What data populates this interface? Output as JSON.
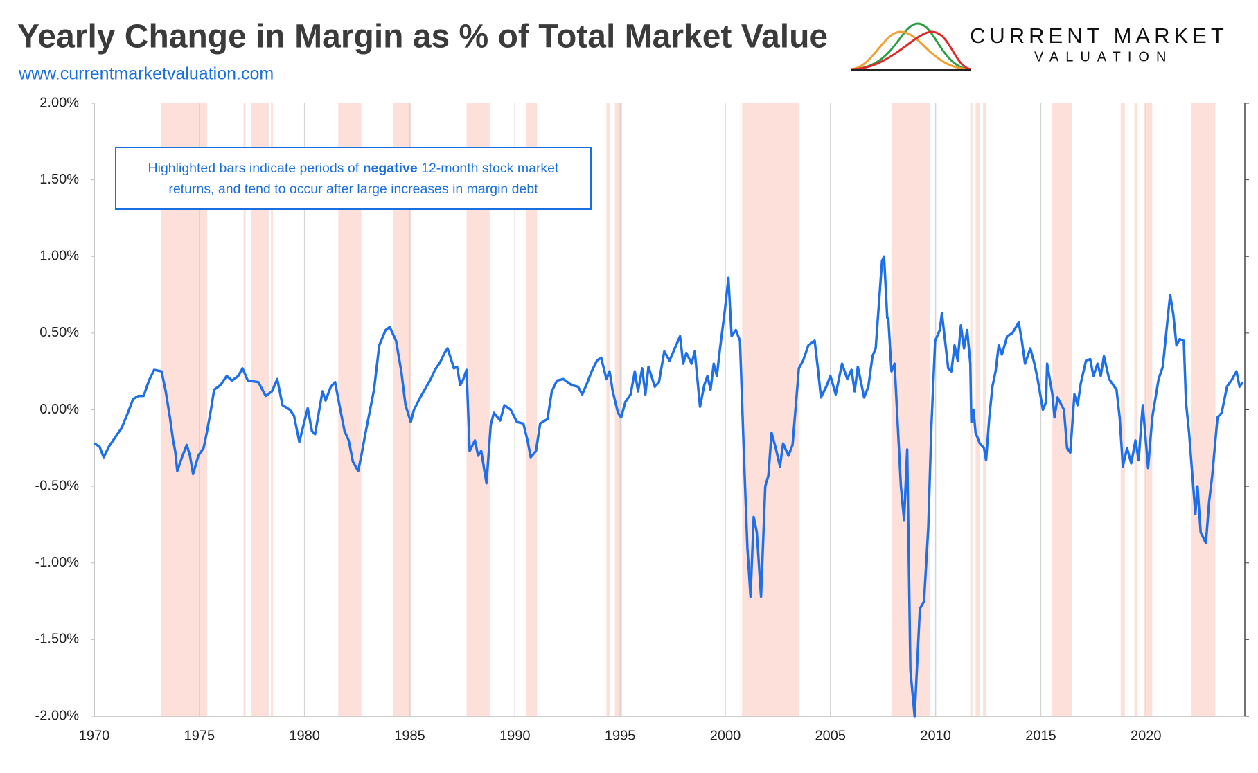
{
  "chart_data": {
    "type": "line",
    "title": "Yearly Change in Margin as % of Total Market Value",
    "subtitle": "www.currentmarketvaluation.com",
    "logo": {
      "line1": "CURRENT MARKET",
      "line2": "VALUATION"
    },
    "annotation": {
      "before": "Highlighted bars indicate periods of ",
      "bold": "negative",
      "after": " 12-month stock market returns, and tend to occur after large increases in margin debt"
    },
    "x": [
      1970.0,
      1970.25,
      1970.45,
      1970.7,
      1971.0,
      1971.3,
      1971.6,
      1971.85,
      1972.1,
      1972.35,
      1972.6,
      1972.85,
      1973.2,
      1973.4,
      1973.6,
      1973.75,
      1973.85,
      1973.95,
      1974.2,
      1974.4,
      1974.55,
      1974.7,
      1974.95,
      1975.2,
      1975.35,
      1975.55,
      1975.7,
      1976.0,
      1976.3,
      1976.55,
      1976.85,
      1977.05,
      1977.3,
      1977.8,
      1978.15,
      1978.45,
      1978.7,
      1978.95,
      1979.3,
      1979.5,
      1979.75,
      1980.15,
      1980.35,
      1980.5,
      1980.85,
      1981.0,
      1981.25,
      1981.45,
      1981.7,
      1981.9,
      1982.1,
      1982.3,
      1982.55,
      1982.7,
      1982.9,
      1983.3,
      1983.55,
      1983.85,
      1984.05,
      1984.35,
      1984.6,
      1984.8,
      1985.05,
      1985.2,
      1985.5,
      1985.75,
      1986.0,
      1986.2,
      1986.45,
      1986.65,
      1986.8,
      1987.1,
      1987.25,
      1987.4,
      1987.55,
      1987.7,
      1987.85,
      1988.1,
      1988.25,
      1988.4,
      1988.55,
      1988.65,
      1988.85,
      1989.0,
      1989.3,
      1989.5,
      1989.8,
      1990.1,
      1990.4,
      1990.6,
      1990.75,
      1991.0,
      1991.2,
      1991.55,
      1991.75,
      1992.0,
      1992.3,
      1992.7,
      1993.0,
      1993.2,
      1993.45,
      1993.65,
      1993.9,
      1994.1,
      1994.35,
      1994.5,
      1994.65,
      1994.9,
      1995.05,
      1995.25,
      1995.5,
      1995.7,
      1995.85,
      1996.05,
      1996.2,
      1996.35,
      1996.65,
      1996.85,
      1997.1,
      1997.35,
      1997.85,
      1998.0,
      1998.15,
      1998.4,
      1998.55,
      1998.8,
      1999.0,
      1999.15,
      1999.3,
      1999.45,
      1999.6,
      1999.75,
      1999.98,
      2000.15,
      2000.3,
      2000.5,
      2000.7,
      2000.9,
      2001.05,
      2001.2,
      2001.35,
      2001.5,
      2001.7,
      2001.9,
      2002.05,
      2002.2,
      2002.4,
      2002.6,
      2002.75,
      2003.0,
      2003.2,
      2003.5,
      2003.7,
      2003.95,
      2004.25,
      2004.4,
      2004.55,
      2004.8,
      2005.0,
      2005.25,
      2005.55,
      2005.8,
      2006.0,
      2006.15,
      2006.3,
      2006.6,
      2006.8,
      2007.0,
      2007.15,
      2007.45,
      2007.55,
      2007.7,
      2007.75,
      2007.9,
      2008.05,
      2008.35,
      2008.5,
      2008.65,
      2008.8,
      2009.0,
      2009.25,
      2009.45,
      2009.65,
      2009.8,
      2009.98,
      2010.2,
      2010.3,
      2010.6,
      2010.75,
      2010.9,
      2011.05,
      2011.2,
      2011.35,
      2011.5,
      2011.65,
      2011.7,
      2011.8,
      2011.9,
      2012.1,
      2012.3,
      2012.4,
      2012.55,
      2012.7,
      2012.85,
      2013.0,
      2013.15,
      2013.4,
      2013.65,
      2013.95,
      2014.1,
      2014.25,
      2014.5,
      2014.7,
      2014.85,
      2015.1,
      2015.25,
      2015.3,
      2015.55,
      2015.65,
      2015.8,
      2016.1,
      2016.25,
      2016.4,
      2016.6,
      2016.75,
      2016.9,
      2017.15,
      2017.35,
      2017.5,
      2017.7,
      2017.85,
      2018.0,
      2018.25,
      2018.45,
      2018.6,
      2018.75,
      2018.9,
      2019.1,
      2019.3,
      2019.5,
      2019.65,
      2019.8,
      2019.85,
      2020.1,
      2020.3,
      2020.6,
      2020.8,
      2021.0,
      2021.15,
      2021.3,
      2021.45,
      2021.6,
      2021.8,
      2021.9,
      2022.05,
      2022.2,
      2022.35,
      2022.45,
      2022.6,
      2022.85,
      2023.0,
      2023.15,
      2023.4,
      2023.6,
      2023.85,
      2024.1,
      2024.3,
      2024.45,
      2024.6
    ],
    "series": [
      {
        "color": "#1f6fe8",
        "values": [
          -0.22,
          -0.24,
          -0.31,
          -0.24,
          -0.18,
          -0.12,
          -0.02,
          0.07,
          0.09,
          0.09,
          0.19,
          0.26,
          0.25,
          0.12,
          -0.05,
          -0.2,
          -0.27,
          -0.4,
          -0.3,
          -0.23,
          -0.3,
          -0.42,
          -0.3,
          -0.25,
          -0.15,
          0.0,
          0.13,
          0.16,
          0.22,
          0.19,
          0.22,
          0.27,
          0.19,
          0.18,
          0.09,
          0.12,
          0.2,
          0.03,
          0.0,
          -0.04,
          -0.21,
          0.01,
          -0.14,
          -0.16,
          0.12,
          0.06,
          0.15,
          0.18,
          0.0,
          -0.14,
          -0.2,
          -0.34,
          -0.4,
          -0.3,
          -0.15,
          0.13,
          0.42,
          0.52,
          0.54,
          0.45,
          0.25,
          0.03,
          -0.08,
          0.0,
          0.08,
          0.14,
          0.2,
          0.26,
          0.31,
          0.37,
          0.4,
          0.27,
          0.28,
          0.16,
          0.2,
          0.26,
          -0.27,
          -0.2,
          -0.3,
          -0.27,
          -0.4,
          -0.48,
          -0.1,
          -0.02,
          -0.07,
          0.03,
          0.0,
          -0.08,
          -0.09,
          -0.2,
          -0.31,
          -0.27,
          -0.09,
          -0.06,
          0.12,
          0.19,
          0.2,
          0.16,
          0.15,
          0.1,
          0.18,
          0.25,
          0.32,
          0.34,
          0.2,
          0.25,
          0.12,
          -0.02,
          -0.05,
          0.05,
          0.1,
          0.25,
          0.12,
          0.27,
          0.1,
          0.28,
          0.15,
          0.18,
          0.38,
          0.32,
          0.48,
          0.3,
          0.37,
          0.3,
          0.38,
          0.02,
          0.16,
          0.22,
          0.13,
          0.3,
          0.22,
          0.4,
          0.65,
          0.86,
          0.48,
          0.52,
          0.45,
          -0.35,
          -0.9,
          -1.22,
          -0.7,
          -0.8,
          -1.22,
          -0.5,
          -0.43,
          -0.15,
          -0.25,
          -0.37,
          -0.22,
          -0.3,
          -0.23,
          0.27,
          0.32,
          0.42,
          0.45,
          0.27,
          0.08,
          0.15,
          0.22,
          0.1,
          0.3,
          0.2,
          0.26,
          0.12,
          0.28,
          0.08,
          0.15,
          0.35,
          0.4,
          0.97,
          1.0,
          0.6,
          0.6,
          0.25,
          0.3,
          -0.5,
          -0.72,
          -0.26,
          -1.7,
          -2.0,
          -1.3,
          -1.25,
          -0.77,
          -0.1,
          0.45,
          0.52,
          0.63,
          0.27,
          0.25,
          0.42,
          0.32,
          0.55,
          0.4,
          0.52,
          0.3,
          -0.08,
          0.0,
          -0.15,
          -0.22,
          -0.25,
          -0.33,
          -0.05,
          0.15,
          0.25,
          0.42,
          0.36,
          0.48,
          0.5,
          0.57,
          0.45,
          0.3,
          0.4,
          0.3,
          0.2,
          0.0,
          0.05,
          0.3,
          0.1,
          -0.05,
          0.08,
          0.0,
          -0.25,
          -0.28,
          0.1,
          0.03,
          0.17,
          0.32,
          0.33,
          0.22,
          0.3,
          0.22,
          0.35,
          0.2,
          0.16,
          0.13,
          -0.05,
          -0.37,
          -0.25,
          -0.35,
          -0.2,
          -0.33,
          -0.05,
          0.03,
          -0.38,
          -0.05,
          0.2,
          0.28,
          0.55,
          0.75,
          0.62,
          0.42,
          0.46,
          0.45,
          0.05,
          -0.15,
          -0.42,
          -0.68,
          -0.5,
          -0.8,
          -0.87,
          -0.6,
          -0.43,
          -0.05,
          -0.02,
          0.15,
          0.2,
          0.25,
          0.15,
          0.18
        ]
      }
    ],
    "shaded_periods": [
      [
        1973.16,
        1975.37
      ],
      [
        1977.1,
        1977.2
      ],
      [
        1977.45,
        1978.3
      ],
      [
        1978.4,
        1978.5
      ],
      [
        1981.6,
        1982.7
      ],
      [
        1984.2,
        1985.05
      ],
      [
        1987.7,
        1988.8
      ],
      [
        1990.55,
        1991.05
      ],
      [
        1994.35,
        1994.5
      ],
      [
        1994.75,
        1995.1
      ],
      [
        2000.8,
        2003.5
      ],
      [
        2007.9,
        2009.75
      ],
      [
        2011.65,
        2011.75
      ],
      [
        2011.9,
        2012.1
      ],
      [
        2012.25,
        2012.4
      ],
      [
        2015.55,
        2016.5
      ],
      [
        2018.8,
        2019.0
      ],
      [
        2019.45,
        2019.6
      ],
      [
        2019.9,
        2020.3
      ],
      [
        2022.15,
        2023.3
      ]
    ],
    "shade_color": "#fde0da",
    "xlim": [
      1970,
      2024.7
    ],
    "xticks": [
      1970,
      1975,
      1980,
      1985,
      1990,
      1995,
      2000,
      2005,
      2010,
      2015,
      2020
    ],
    "ylim": [
      -2,
      2
    ],
    "yticks": [
      {
        "value": 2,
        "label": "2.00%"
      },
      {
        "value": 1.5,
        "label": "1.50%"
      },
      {
        "value": 1,
        "label": "1.00%"
      },
      {
        "value": 0.5,
        "label": "0.50%"
      },
      {
        "value": 0,
        "label": "0.00%"
      },
      {
        "value": -0.5,
        "label": "-0.50%"
      },
      {
        "value": -1,
        "label": "-1.00%"
      },
      {
        "value": -1.5,
        "label": "-1.50%"
      },
      {
        "value": -2,
        "label": "-2.00%"
      }
    ],
    "grid": "x"
  }
}
